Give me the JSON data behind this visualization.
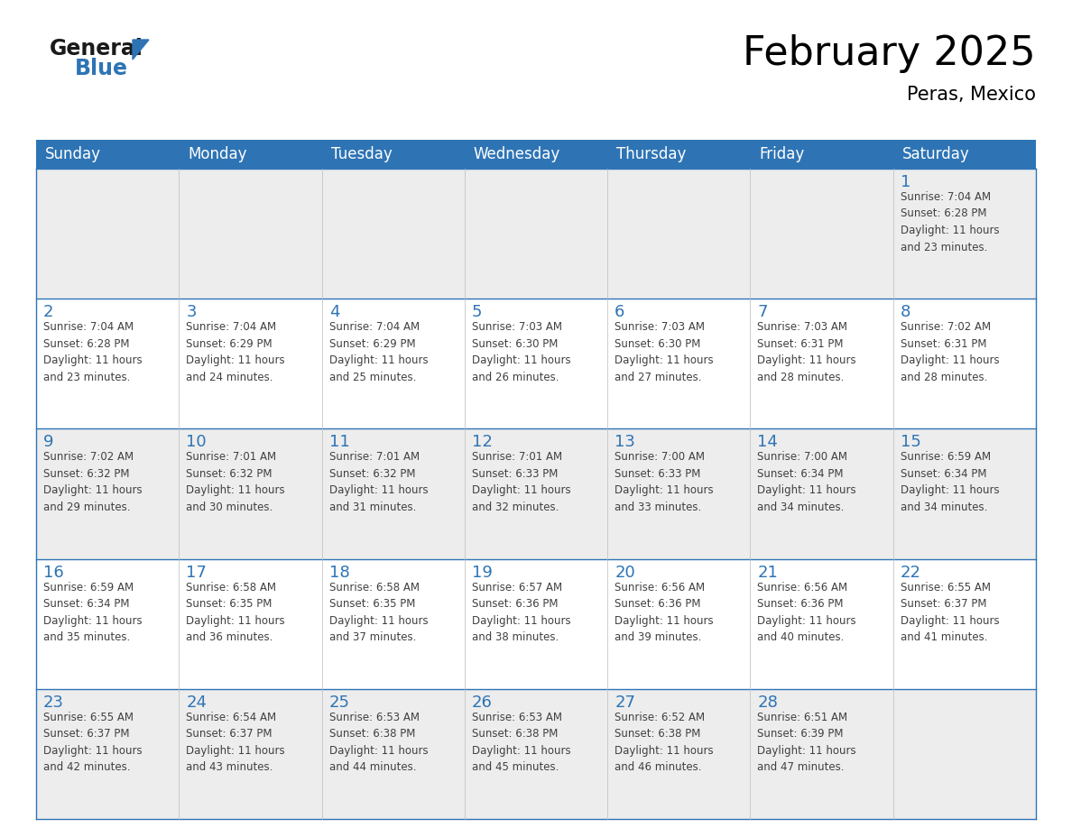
{
  "title": "February 2025",
  "subtitle": "Peras, Mexico",
  "header_bg_color": "#2E74B5",
  "header_text_color": "#FFFFFF",
  "day_names": [
    "Sunday",
    "Monday",
    "Tuesday",
    "Wednesday",
    "Thursday",
    "Friday",
    "Saturday"
  ],
  "alt_row_color": "#EDEDED",
  "white_color": "#FFFFFF",
  "border_color": "#2E74B5",
  "number_color": "#2E74B5",
  "text_color": "#404040",
  "logo_general_color": "#1a1a1a",
  "logo_blue_color": "#2E74B5",
  "logo_triangle_color": "#2E74B5",
  "calendar": [
    [
      {
        "day": null,
        "info": null
      },
      {
        "day": null,
        "info": null
      },
      {
        "day": null,
        "info": null
      },
      {
        "day": null,
        "info": null
      },
      {
        "day": null,
        "info": null
      },
      {
        "day": null,
        "info": null
      },
      {
        "day": 1,
        "info": "Sunrise: 7:04 AM\nSunset: 6:28 PM\nDaylight: 11 hours\nand 23 minutes."
      }
    ],
    [
      {
        "day": 2,
        "info": "Sunrise: 7:04 AM\nSunset: 6:28 PM\nDaylight: 11 hours\nand 23 minutes."
      },
      {
        "day": 3,
        "info": "Sunrise: 7:04 AM\nSunset: 6:29 PM\nDaylight: 11 hours\nand 24 minutes."
      },
      {
        "day": 4,
        "info": "Sunrise: 7:04 AM\nSunset: 6:29 PM\nDaylight: 11 hours\nand 25 minutes."
      },
      {
        "day": 5,
        "info": "Sunrise: 7:03 AM\nSunset: 6:30 PM\nDaylight: 11 hours\nand 26 minutes."
      },
      {
        "day": 6,
        "info": "Sunrise: 7:03 AM\nSunset: 6:30 PM\nDaylight: 11 hours\nand 27 minutes."
      },
      {
        "day": 7,
        "info": "Sunrise: 7:03 AM\nSunset: 6:31 PM\nDaylight: 11 hours\nand 28 minutes."
      },
      {
        "day": 8,
        "info": "Sunrise: 7:02 AM\nSunset: 6:31 PM\nDaylight: 11 hours\nand 28 minutes."
      }
    ],
    [
      {
        "day": 9,
        "info": "Sunrise: 7:02 AM\nSunset: 6:32 PM\nDaylight: 11 hours\nand 29 minutes."
      },
      {
        "day": 10,
        "info": "Sunrise: 7:01 AM\nSunset: 6:32 PM\nDaylight: 11 hours\nand 30 minutes."
      },
      {
        "day": 11,
        "info": "Sunrise: 7:01 AM\nSunset: 6:32 PM\nDaylight: 11 hours\nand 31 minutes."
      },
      {
        "day": 12,
        "info": "Sunrise: 7:01 AM\nSunset: 6:33 PM\nDaylight: 11 hours\nand 32 minutes."
      },
      {
        "day": 13,
        "info": "Sunrise: 7:00 AM\nSunset: 6:33 PM\nDaylight: 11 hours\nand 33 minutes."
      },
      {
        "day": 14,
        "info": "Sunrise: 7:00 AM\nSunset: 6:34 PM\nDaylight: 11 hours\nand 34 minutes."
      },
      {
        "day": 15,
        "info": "Sunrise: 6:59 AM\nSunset: 6:34 PM\nDaylight: 11 hours\nand 34 minutes."
      }
    ],
    [
      {
        "day": 16,
        "info": "Sunrise: 6:59 AM\nSunset: 6:34 PM\nDaylight: 11 hours\nand 35 minutes."
      },
      {
        "day": 17,
        "info": "Sunrise: 6:58 AM\nSunset: 6:35 PM\nDaylight: 11 hours\nand 36 minutes."
      },
      {
        "day": 18,
        "info": "Sunrise: 6:58 AM\nSunset: 6:35 PM\nDaylight: 11 hours\nand 37 minutes."
      },
      {
        "day": 19,
        "info": "Sunrise: 6:57 AM\nSunset: 6:36 PM\nDaylight: 11 hours\nand 38 minutes."
      },
      {
        "day": 20,
        "info": "Sunrise: 6:56 AM\nSunset: 6:36 PM\nDaylight: 11 hours\nand 39 minutes."
      },
      {
        "day": 21,
        "info": "Sunrise: 6:56 AM\nSunset: 6:36 PM\nDaylight: 11 hours\nand 40 minutes."
      },
      {
        "day": 22,
        "info": "Sunrise: 6:55 AM\nSunset: 6:37 PM\nDaylight: 11 hours\nand 41 minutes."
      }
    ],
    [
      {
        "day": 23,
        "info": "Sunrise: 6:55 AM\nSunset: 6:37 PM\nDaylight: 11 hours\nand 42 minutes."
      },
      {
        "day": 24,
        "info": "Sunrise: 6:54 AM\nSunset: 6:37 PM\nDaylight: 11 hours\nand 43 minutes."
      },
      {
        "day": 25,
        "info": "Sunrise: 6:53 AM\nSunset: 6:38 PM\nDaylight: 11 hours\nand 44 minutes."
      },
      {
        "day": 26,
        "info": "Sunrise: 6:53 AM\nSunset: 6:38 PM\nDaylight: 11 hours\nand 45 minutes."
      },
      {
        "day": 27,
        "info": "Sunrise: 6:52 AM\nSunset: 6:38 PM\nDaylight: 11 hours\nand 46 minutes."
      },
      {
        "day": 28,
        "info": "Sunrise: 6:51 AM\nSunset: 6:39 PM\nDaylight: 11 hours\nand 47 minutes."
      },
      {
        "day": null,
        "info": null
      }
    ]
  ]
}
